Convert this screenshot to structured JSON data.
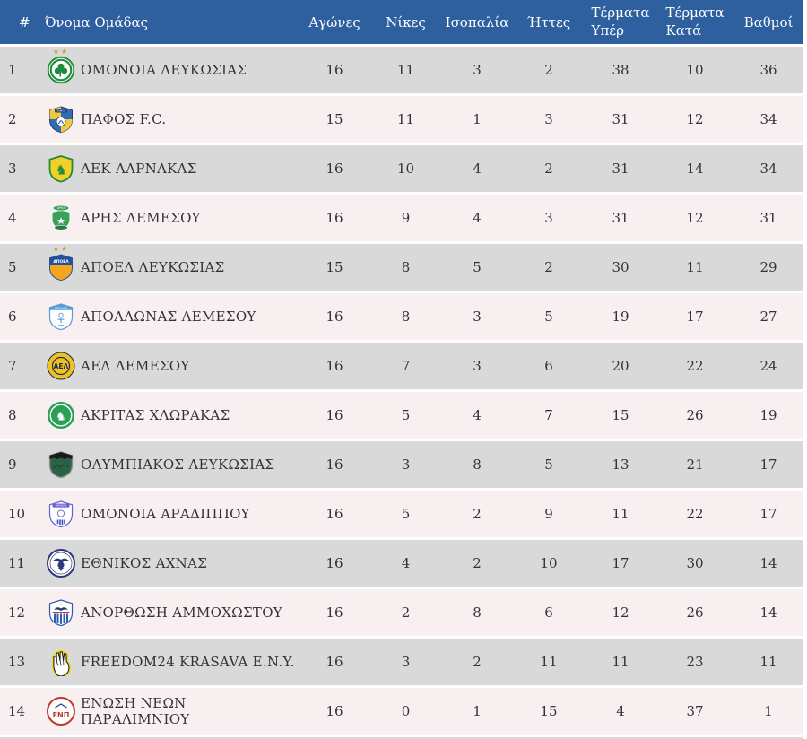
{
  "table": {
    "headers": {
      "rank": "#",
      "team": "Όνομα Ομάδας",
      "played": "Αγώνες",
      "wins": "Νίκες",
      "draws": "Ισοπαλία",
      "losses": "Ήττες",
      "goals_for": [
        "Τέρματα",
        "Υπέρ"
      ],
      "goals_against": [
        "Τέρματα",
        "Κατά"
      ],
      "points": "Βαθμοί"
    },
    "colors": {
      "header_bg": "#2e5f9f",
      "header_text": "#ffffff",
      "row_odd": "#d9d9d9",
      "row_even": "#f8eff0",
      "cell_text": "#333333",
      "star_color": "#c9a227"
    },
    "rows": [
      {
        "rank": "1",
        "name": "ΟΜΟΝΟΙΑ ΛΕΥΚΩΣΙΑΣ",
        "played": "16",
        "wins": "11",
        "draws": "3",
        "losses": "2",
        "goals_for": "38",
        "goals_against": "10",
        "points": "36",
        "logo": {
          "id": "omonoia-leukosias-crest",
          "kind": "omonoia",
          "stars": "★★",
          "green": "#1e8c3a",
          "white": "#ffffff"
        }
      },
      {
        "rank": "2",
        "name": "ΠΑΦΟΣ F.C.",
        "played": "15",
        "wins": "11",
        "draws": "1",
        "losses": "3",
        "goals_for": "31",
        "goals_against": "12",
        "points": "34",
        "logo": {
          "id": "pafos-fc-crest",
          "kind": "pafos",
          "blue": "#2e6cb5",
          "yellow": "#f3c83e",
          "navy": "#1d3e6e",
          "white": "#ffffff"
        }
      },
      {
        "rank": "3",
        "name": "ΑΕΚ ΛΑΡΝΑΚΑΣ",
        "played": "16",
        "wins": "10",
        "draws": "4",
        "losses": "2",
        "goals_for": "31",
        "goals_against": "14",
        "points": "34",
        "logo": {
          "id": "aek-larnakas-crest",
          "kind": "aek",
          "yellow": "#f2d028",
          "green": "#1e8c3a"
        }
      },
      {
        "rank": "4",
        "name": "ΑΡΗΣ ΛΕΜΕΣΟΥ",
        "played": "16",
        "wins": "9",
        "draws": "4",
        "losses": "3",
        "goals_for": "31",
        "goals_against": "12",
        "points": "31",
        "logo": {
          "id": "aris-lemesou-crest",
          "kind": "aris",
          "green": "#3aa158",
          "dark": "#2b7a42",
          "white": "#ffffff"
        }
      },
      {
        "rank": "5",
        "name": "ΑΠΟΕΛ ΛΕΥΚΩΣΙΑΣ",
        "played": "15",
        "wins": "8",
        "draws": "5",
        "losses": "2",
        "goals_for": "30",
        "goals_against": "11",
        "points": "29",
        "logo": {
          "id": "apoel-leukosias-crest",
          "kind": "apoel",
          "stars": "★★",
          "blue": "#24509c",
          "orange": "#f6a51e",
          "white": "#ffffff"
        }
      },
      {
        "rank": "6",
        "name": "ΑΠΟΛΛΩΝΑΣ ΛΕΜΕΣΟΥ",
        "played": "16",
        "wins": "8",
        "draws": "3",
        "losses": "5",
        "goals_for": "19",
        "goals_against": "17",
        "points": "27",
        "logo": {
          "id": "apollonas-lemesou-crest",
          "kind": "apollonas",
          "blue": "#5b9bd8",
          "white": "#ffffff"
        }
      },
      {
        "rank": "7",
        "name": "ΑΕΛ ΛΕΜΕΣΟΥ",
        "played": "16",
        "wins": "7",
        "draws": "3",
        "losses": "6",
        "goals_for": "20",
        "goals_against": "22",
        "points": "24",
        "logo": {
          "id": "ael-lemesou-crest",
          "kind": "ael",
          "gold": "#eec31e",
          "navy": "#1c2a5a"
        }
      },
      {
        "rank": "8",
        "name": "ΑΚΡΙΤΑΣ ΧΛΩΡΑΚΑΣ",
        "played": "16",
        "wins": "5",
        "draws": "4",
        "losses": "7",
        "goals_for": "15",
        "goals_against": "26",
        "points": "19",
        "logo": {
          "id": "akritas-chlorakas-crest",
          "kind": "akritas",
          "green": "#2aa055",
          "white": "#ffffff"
        }
      },
      {
        "rank": "9",
        "name": "ΟΛΥΜΠΙΑΚΟΣ ΛΕΥΚΩΣΙΑΣ",
        "played": "16",
        "wins": "3",
        "draws": "8",
        "losses": "5",
        "goals_for": "13",
        "goals_against": "21",
        "points": "17",
        "logo": {
          "id": "olympiakos-leukosias-crest",
          "kind": "olympiakos",
          "green": "#2a6245",
          "black": "#1a1a1a",
          "border": "#8d9398"
        }
      },
      {
        "rank": "10",
        "name": "ΟΜΟΝΟΙΑ ΑΡΑΔΙΠΠΟΥ",
        "played": "16",
        "wins": "5",
        "draws": "2",
        "losses": "9",
        "goals_for": "11",
        "goals_against": "22",
        "points": "17",
        "logo": {
          "id": "omonoia-aradippou-crest",
          "kind": "aradippou",
          "violet": "#6a5fd0",
          "blue": "#3b4bc8",
          "white": "#ffffff"
        }
      },
      {
        "rank": "11",
        "name": "ΕΘΝΙΚΟΣ ΑΧΝΑΣ",
        "played": "16",
        "wins": "4",
        "draws": "2",
        "losses": "10",
        "goals_for": "17",
        "goals_against": "30",
        "points": "14",
        "logo": {
          "id": "ethnikos-achnas-crest",
          "kind": "ethnikos",
          "navy": "#2c3a7a",
          "white": "#ffffff"
        }
      },
      {
        "rank": "12",
        "name": "ΑΝΟΡΘΩΣΗ ΑΜΜΟΧΩΣΤΟΥ",
        "played": "16",
        "wins": "2",
        "draws": "8",
        "losses": "6",
        "goals_for": "12",
        "goals_against": "26",
        "points": "14",
        "logo": {
          "id": "anorthosis-ammochostou-crest",
          "kind": "anorthosis",
          "blue": "#2a5cb0",
          "navy": "#1d3e7a",
          "red": "#d03a3a",
          "yellow": "#f2c83c",
          "white": "#ffffff"
        }
      },
      {
        "rank": "13",
        "name": "FREEDOM24 KRASAVA E.N.Y.",
        "played": "16",
        "wins": "3",
        "draws": "2",
        "losses": "11",
        "goals_for": "11",
        "goals_against": "23",
        "points": "11",
        "logo": {
          "id": "freedom24-krasava-crest",
          "kind": "krasava",
          "yellow": "#f2d51c",
          "black": "#222222",
          "white": "#ffffff"
        }
      },
      {
        "rank": "14",
        "name": "ΕΝΩΣΗ ΝΕΩΝ ΠΑΡΑΛΙΜΝΙΟΥ",
        "played": "16",
        "wins": "0",
        "draws": "1",
        "losses": "15",
        "goals_for": "4",
        "goals_against": "37",
        "points": "1",
        "logo": {
          "id": "enosi-neon-paralimniou-crest",
          "kind": "enp",
          "red": "#c0392b",
          "navy": "#2c3a7a",
          "white": "#ffffff"
        }
      }
    ]
  }
}
